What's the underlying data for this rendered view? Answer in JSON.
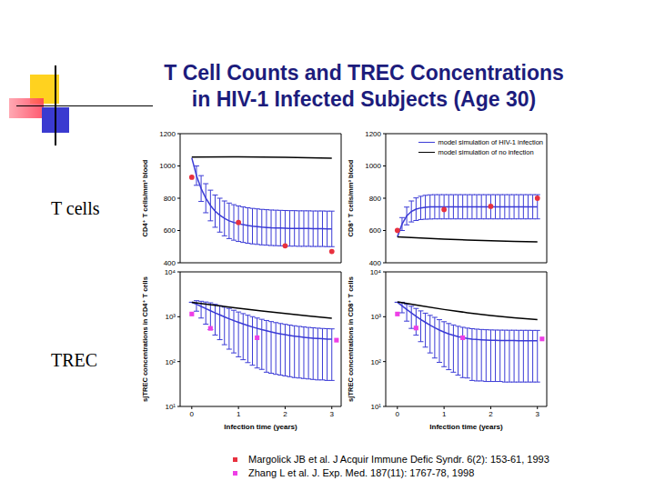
{
  "slide": {
    "title_lines": [
      "T Cell Counts and TREC Concentrations",
      "in HIV-1 Infected Subjects (Age 30)"
    ],
    "row_labels": [
      "T cells",
      "TREC"
    ],
    "references": [
      {
        "text": "Margolick JB et al. J Acquir Immune Defic Syndr. 6(2): 153-61, 1993",
        "color": "#e8313f"
      },
      {
        "text": "Zhang L et al. J. Exp. Med. 187(11): 1767-78, 1998",
        "color": "#ee3fe6"
      }
    ]
  },
  "chart_data": [
    {
      "type": "line",
      "ylabel": "CD4⁺ T cells/mm³ blood",
      "xlim": [
        -0.25,
        3.2
      ],
      "xticks": [
        0,
        1,
        2,
        3
      ],
      "ylim": [
        400,
        1200
      ],
      "yticks": [
        400,
        600,
        800,
        1000,
        1200
      ],
      "tick_labels": "y",
      "series": [
        {
          "type": "line",
          "color": "#3b3bd6",
          "x": [
            0,
            0.1,
            0.2,
            0.3,
            0.4,
            0.5,
            0.6,
            0.7,
            0.8,
            0.9,
            1,
            1.1,
            1.2,
            1.3,
            1.4,
            1.5,
            1.6,
            1.7,
            1.8,
            1.9,
            2,
            2.1,
            2.2,
            2.3,
            2.4,
            2.5,
            2.6,
            2.7,
            2.8,
            2.9,
            3
          ],
          "values": [
            1050,
            940,
            860,
            800,
            755,
            720,
            695,
            675,
            660,
            650,
            642,
            636,
            631,
            627,
            624,
            621,
            619,
            617,
            616,
            615,
            614,
            613,
            613,
            612,
            612,
            612,
            611,
            611,
            611,
            610,
            610
          ],
          "error": [
            0,
            60,
            80,
            90,
            95,
            100,
            105,
            108,
            110,
            110,
            110,
            110,
            110,
            110,
            110,
            110,
            110,
            110,
            110,
            110,
            110,
            110,
            110,
            110,
            110,
            110,
            110,
            110,
            110,
            110,
            110
          ]
        },
        {
          "type": "line",
          "color": "#000000",
          "x": [
            0,
            1,
            2,
            3
          ],
          "values": [
            1055,
            1057,
            1053,
            1048
          ]
        },
        {
          "type": "scatter",
          "color": "#e8313f",
          "marker": "circle",
          "x": [
            0,
            1,
            2,
            3
          ],
          "values": [
            930,
            650,
            505,
            470
          ]
        }
      ]
    },
    {
      "type": "line",
      "ylabel": "CD8⁺ T cells/mm³ blood",
      "xlim": [
        -0.25,
        3.2
      ],
      "xticks": [
        0,
        1,
        2,
        3
      ],
      "ylim": [
        400,
        1200
      ],
      "yticks": [
        400,
        600,
        800,
        1000,
        1200
      ],
      "tick_labels": "y",
      "legend": "upper right",
      "series": [
        {
          "name": "model simulation of HIV-1 infection",
          "type": "line",
          "color": "#3b3bd6",
          "x": [
            0,
            0.1,
            0.2,
            0.3,
            0.4,
            0.5,
            0.6,
            0.7,
            0.8,
            0.9,
            1,
            1.1,
            1.2,
            1.3,
            1.4,
            1.5,
            1.6,
            1.7,
            1.8,
            1.9,
            2,
            2.1,
            2.2,
            2.3,
            2.4,
            2.5,
            2.6,
            2.7,
            2.8,
            2.9,
            3
          ],
          "values": [
            560,
            640,
            690,
            718,
            732,
            740,
            744,
            746,
            747,
            747,
            747,
            747,
            747,
            747,
            747,
            747,
            747,
            747,
            747,
            747,
            747,
            747,
            747,
            747,
            747,
            747,
            747,
            747,
            747,
            747,
            747
          ],
          "error": [
            0,
            40,
            55,
            65,
            70,
            72,
            74,
            75,
            75,
            75,
            75,
            75,
            75,
            75,
            75,
            75,
            75,
            75,
            75,
            75,
            75,
            75,
            75,
            75,
            75,
            75,
            75,
            75,
            75,
            75,
            75
          ]
        },
        {
          "name": "model simulation of no infection",
          "type": "line",
          "color": "#000000",
          "x": [
            0,
            0.5,
            1,
            1.5,
            2,
            2.5,
            3
          ],
          "values": [
            560,
            553,
            546,
            541,
            537,
            533,
            530
          ]
        },
        {
          "type": "scatter",
          "color": "#e8313f",
          "marker": "circle",
          "x": [
            0,
            1,
            2,
            3
          ],
          "values": [
            600,
            730,
            750,
            800
          ]
        }
      ]
    },
    {
      "type": "line",
      "ylabel": "sjTREC concentrations in CD4⁺ T cells",
      "xlabel": "Infection time (years)",
      "xlim": [
        -0.25,
        3.2
      ],
      "xticks": [
        0,
        1,
        2,
        3
      ],
      "ylim": [
        10,
        10000
      ],
      "yticks": [
        {
          "value": 10,
          "label": "10¹"
        },
        {
          "value": 100,
          "label": "10²"
        },
        {
          "value": 1000,
          "label": "10³"
        },
        {
          "value": 10000,
          "label": "10⁴"
        }
      ],
      "log": "y",
      "series": [
        {
          "type": "line",
          "color": "#3b3bd6",
          "x": [
            0,
            0.1,
            0.2,
            0.3,
            0.4,
            0.5,
            0.6,
            0.7,
            0.8,
            0.9,
            1,
            1.1,
            1.2,
            1.3,
            1.4,
            1.5,
            1.6,
            1.7,
            1.8,
            1.9,
            2,
            2.1,
            2.2,
            2.3,
            2.4,
            2.5,
            2.6,
            2.7,
            2.8,
            2.9,
            3
          ],
          "values": [
            2100,
            1900,
            1700,
            1520,
            1360,
            1220,
            1100,
            990,
            900,
            820,
            750,
            690,
            635,
            590,
            550,
            515,
            485,
            458,
            435,
            415,
            398,
            383,
            370,
            358,
            348,
            340,
            333,
            327,
            322,
            318,
            315
          ],
          "error_minus": [
            0,
            570,
            765,
            836,
            843,
            830,
            792,
            752,
            711,
            664,
            622,
            580,
            540,
            507,
            478,
            448,
            427,
            403,
            383,
            365,
            350,
            337,
            326,
            315,
            306,
            299,
            293,
            288,
            283,
            280,
            277
          ],
          "error_plus": [
            0,
            380,
            510,
            608,
            680,
            671,
            660,
            644,
            630,
            574,
            525,
            483,
            445,
            413,
            385,
            361,
            340,
            321,
            305,
            291,
            279,
            268,
            259,
            251,
            244,
            238,
            233,
            229,
            225,
            223,
            221
          ]
        },
        {
          "type": "line",
          "color": "#000000",
          "x": [
            0,
            0.5,
            1,
            1.5,
            2,
            2.5,
            3
          ],
          "values": [
            2100,
            1800,
            1550,
            1350,
            1180,
            1040,
            920
          ]
        },
        {
          "type": "scatter",
          "color": "#ee3fe6",
          "marker": "square",
          "x": [
            0,
            0.4,
            1.4,
            3.1
          ],
          "values": [
            1150,
            550,
            340,
            300
          ]
        }
      ]
    },
    {
      "type": "line",
      "ylabel": "sjTREC concentrations in CD8⁺ T cells",
      "xlabel": "Infection time (years)",
      "xlim": [
        -0.25,
        3.2
      ],
      "xticks": [
        0,
        1,
        2,
        3
      ],
      "ylim": [
        10,
        10000
      ],
      "yticks": [
        {
          "value": 10,
          "label": "10¹"
        },
        {
          "value": 100,
          "label": "10²"
        },
        {
          "value": 1000,
          "label": "10³"
        },
        {
          "value": 10000,
          "label": "10⁴"
        }
      ],
      "log": "y",
      "series": [
        {
          "type": "line",
          "color": "#3b3bd6",
          "x": [
            0,
            0.1,
            0.2,
            0.3,
            0.4,
            0.5,
            0.6,
            0.7,
            0.8,
            0.9,
            1,
            1.1,
            1.2,
            1.3,
            1.4,
            1.5,
            1.6,
            1.7,
            1.8,
            1.9,
            2,
            2.1,
            2.2,
            2.3,
            2.4,
            2.5,
            2.6,
            2.7,
            2.8,
            2.9,
            3
          ],
          "values": [
            2100,
            1750,
            1450,
            1220,
            1020,
            870,
            750,
            650,
            570,
            505,
            455,
            415,
            385,
            360,
            342,
            328,
            318,
            311,
            306,
            302,
            299,
            297,
            296,
            295,
            294,
            294,
            293,
            293,
            293,
            292,
            292
          ],
          "error_minus": [
            0,
            525,
            653,
            671,
            632,
            592,
            540,
            494,
            450,
            409,
            378,
            349,
            327,
            310,
            298,
            285,
            280,
            274,
            269,
            266,
            263,
            261,
            260,
            260,
            259,
            259,
            258,
            258,
            258,
            257,
            257
          ],
          "error_plus": [
            0,
            350,
            435,
            488,
            510,
            479,
            450,
            423,
            399,
            354,
            319,
            291,
            270,
            252,
            239,
            230,
            223,
            218,
            214,
            211,
            209,
            208,
            207,
            207,
            206,
            206,
            205,
            205,
            205,
            204,
            204
          ]
        },
        {
          "type": "line",
          "color": "#000000",
          "x": [
            0,
            0.5,
            1,
            1.5,
            2,
            2.5,
            3
          ],
          "values": [
            2150,
            1750,
            1450,
            1230,
            1070,
            950,
            860
          ]
        },
        {
          "type": "scatter",
          "color": "#ee3fe6",
          "marker": "square",
          "x": [
            0,
            0.4,
            1.4,
            3.1
          ],
          "values": [
            1150,
            560,
            340,
            320
          ]
        }
      ]
    }
  ]
}
